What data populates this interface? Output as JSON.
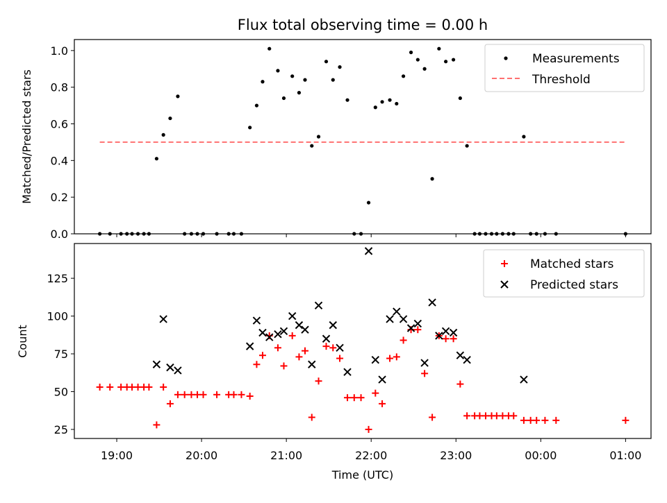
{
  "chart_data": [
    {
      "type": "scatter",
      "title": "Flux total observing time = 0.00 h",
      "ylabel": "Matched/Predicted stars",
      "xlabel": "",
      "xlim": [
        18.5,
        25.3
      ],
      "ylim": [
        0.0,
        1.06
      ],
      "yticks": [
        0.0,
        0.2,
        0.4,
        0.6,
        0.8,
        1.0
      ],
      "ytick_labels": [
        "0.0",
        "0.2",
        "0.4",
        "0.6",
        "0.8",
        "1.0"
      ],
      "legend_position": "upper right",
      "series": [
        {
          "name": "Measurements",
          "color": "#000000",
          "marker": "dot",
          "points": [
            [
              18.8,
              0.0
            ],
            [
              18.92,
              0.0
            ],
            [
              19.05,
              0.0
            ],
            [
              19.12,
              0.0
            ],
            [
              19.18,
              0.0
            ],
            [
              19.25,
              0.0
            ],
            [
              19.32,
              0.0
            ],
            [
              19.38,
              0.0
            ],
            [
              19.47,
              0.41
            ],
            [
              19.55,
              0.54
            ],
            [
              19.63,
              0.63
            ],
            [
              19.72,
              0.75
            ],
            [
              19.8,
              0.0
            ],
            [
              19.88,
              0.0
            ],
            [
              19.95,
              0.0
            ],
            [
              20.02,
              0.0
            ],
            [
              20.18,
              0.0
            ],
            [
              20.32,
              0.0
            ],
            [
              20.38,
              0.0
            ],
            [
              20.47,
              0.0
            ],
            [
              20.57,
              0.58
            ],
            [
              20.65,
              0.7
            ],
            [
              20.72,
              0.83
            ],
            [
              20.8,
              1.01
            ],
            [
              20.9,
              0.89
            ],
            [
              20.97,
              0.74
            ],
            [
              21.07,
              0.86
            ],
            [
              21.15,
              0.77
            ],
            [
              21.22,
              0.84
            ],
            [
              21.3,
              0.48
            ],
            [
              21.38,
              0.53
            ],
            [
              21.47,
              0.94
            ],
            [
              21.55,
              0.84
            ],
            [
              21.63,
              0.91
            ],
            [
              21.72,
              0.73
            ],
            [
              21.8,
              0.0
            ],
            [
              21.88,
              0.0
            ],
            [
              21.97,
              0.17
            ],
            [
              22.05,
              0.69
            ],
            [
              22.13,
              0.72
            ],
            [
              22.22,
              0.73
            ],
            [
              22.3,
              0.71
            ],
            [
              22.38,
              0.86
            ],
            [
              22.47,
              0.99
            ],
            [
              22.55,
              0.95
            ],
            [
              22.63,
              0.9
            ],
            [
              22.72,
              0.3
            ],
            [
              22.8,
              1.01
            ],
            [
              22.88,
              0.94
            ],
            [
              22.97,
              0.95
            ],
            [
              23.05,
              0.74
            ],
            [
              23.13,
              0.48
            ],
            [
              23.22,
              0.0
            ],
            [
              23.28,
              0.0
            ],
            [
              23.35,
              0.0
            ],
            [
              23.42,
              0.0
            ],
            [
              23.48,
              0.0
            ],
            [
              23.55,
              0.0
            ],
            [
              23.62,
              0.0
            ],
            [
              23.68,
              0.0
            ],
            [
              23.8,
              0.53
            ],
            [
              23.88,
              0.0
            ],
            [
              23.95,
              0.0
            ],
            [
              24.05,
              0.0
            ],
            [
              24.18,
              0.0
            ],
            [
              25.0,
              0.0
            ]
          ]
        },
        {
          "name": "Threshold",
          "color": "#ff7070",
          "style": "dashed",
          "points": [
            [
              18.8,
              0.5
            ],
            [
              25.0,
              0.5
            ]
          ]
        }
      ]
    },
    {
      "type": "scatter",
      "title": "",
      "ylabel": "Count",
      "xlabel": "Time (UTC)",
      "xlim": [
        18.5,
        25.3
      ],
      "ylim": [
        19,
        148
      ],
      "yticks": [
        25,
        50,
        75,
        100,
        125
      ],
      "ytick_labels": [
        "25",
        "50",
        "75",
        "100",
        "125"
      ],
      "xticks": [
        19,
        20,
        21,
        22,
        23,
        24,
        25
      ],
      "xtick_labels": [
        "19:00",
        "20:00",
        "21:00",
        "22:00",
        "23:00",
        "00:00",
        "01:00"
      ],
      "legend_position": "upper right",
      "series": [
        {
          "name": "Matched stars",
          "color": "#ff0000",
          "marker": "plus",
          "points": [
            [
              18.8,
              53
            ],
            [
              18.92,
              53
            ],
            [
              19.05,
              53
            ],
            [
              19.12,
              53
            ],
            [
              19.18,
              53
            ],
            [
              19.25,
              53
            ],
            [
              19.32,
              53
            ],
            [
              19.38,
              53
            ],
            [
              19.47,
              28
            ],
            [
              19.55,
              53
            ],
            [
              19.63,
              42
            ],
            [
              19.72,
              48
            ],
            [
              19.8,
              48
            ],
            [
              19.88,
              48
            ],
            [
              19.95,
              48
            ],
            [
              20.02,
              48
            ],
            [
              20.18,
              48
            ],
            [
              20.32,
              48
            ],
            [
              20.38,
              48
            ],
            [
              20.47,
              48
            ],
            [
              20.57,
              47
            ],
            [
              20.65,
              68
            ],
            [
              20.72,
              74
            ],
            [
              20.8,
              87
            ],
            [
              20.9,
              79
            ],
            [
              20.97,
              67
            ],
            [
              21.07,
              87
            ],
            [
              21.15,
              73
            ],
            [
              21.22,
              77
            ],
            [
              21.3,
              33
            ],
            [
              21.38,
              57
            ],
            [
              21.47,
              80
            ],
            [
              21.55,
              79
            ],
            [
              21.63,
              72
            ],
            [
              21.72,
              46
            ],
            [
              21.8,
              46
            ],
            [
              21.88,
              46
            ],
            [
              21.97,
              25
            ],
            [
              22.05,
              49
            ],
            [
              22.13,
              42
            ],
            [
              22.22,
              72
            ],
            [
              22.3,
              73
            ],
            [
              22.38,
              84
            ],
            [
              22.47,
              91
            ],
            [
              22.55,
              91
            ],
            [
              22.63,
              62
            ],
            [
              22.72,
              33
            ],
            [
              22.8,
              87
            ],
            [
              22.88,
              85
            ],
            [
              22.97,
              85
            ],
            [
              23.05,
              55
            ],
            [
              23.13,
              34
            ],
            [
              23.22,
              34
            ],
            [
              23.28,
              34
            ],
            [
              23.35,
              34
            ],
            [
              23.42,
              34
            ],
            [
              23.48,
              34
            ],
            [
              23.55,
              34
            ],
            [
              23.62,
              34
            ],
            [
              23.68,
              34
            ],
            [
              23.8,
              31
            ],
            [
              23.88,
              31
            ],
            [
              23.95,
              31
            ],
            [
              24.05,
              31
            ],
            [
              24.18,
              31
            ],
            [
              25.0,
              31
            ]
          ]
        },
        {
          "name": "Predicted stars",
          "color": "#000000",
          "marker": "x",
          "points": [
            [
              19.47,
              68
            ],
            [
              19.55,
              98
            ],
            [
              19.63,
              66
            ],
            [
              19.72,
              64
            ],
            [
              20.57,
              80
            ],
            [
              20.65,
              97
            ],
            [
              20.72,
              89
            ],
            [
              20.8,
              86
            ],
            [
              20.9,
              88
            ],
            [
              20.97,
              90
            ],
            [
              21.07,
              100
            ],
            [
              21.15,
              94
            ],
            [
              21.22,
              91
            ],
            [
              21.3,
              68
            ],
            [
              21.38,
              107
            ],
            [
              21.47,
              85
            ],
            [
              21.55,
              94
            ],
            [
              21.63,
              79
            ],
            [
              21.72,
              63
            ],
            [
              21.97,
              143
            ],
            [
              22.05,
              71
            ],
            [
              22.13,
              58
            ],
            [
              22.22,
              98
            ],
            [
              22.3,
              103
            ],
            [
              22.38,
              98
            ],
            [
              22.47,
              92
            ],
            [
              22.55,
              95
            ],
            [
              22.63,
              69
            ],
            [
              22.72,
              109
            ],
            [
              22.8,
              87
            ],
            [
              22.88,
              90
            ],
            [
              22.97,
              89
            ],
            [
              23.05,
              74
            ],
            [
              23.13,
              71
            ],
            [
              23.8,
              58
            ]
          ]
        }
      ]
    }
  ]
}
